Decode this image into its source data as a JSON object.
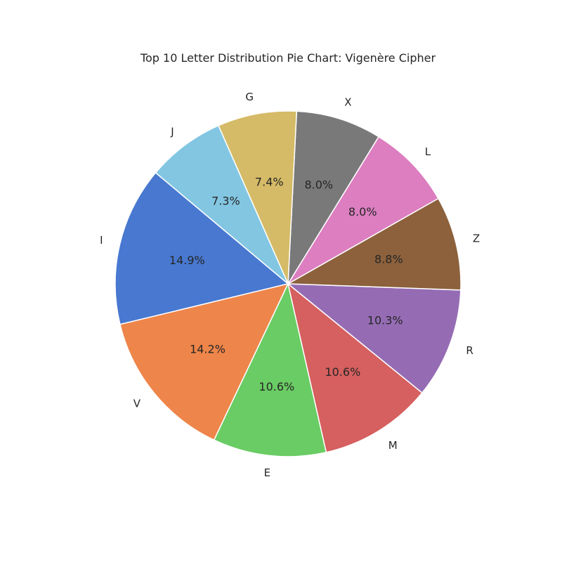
{
  "chart_data": {
    "type": "pie",
    "title": "Top 10 Letter Distribution Pie Chart: Vigenère Cipher",
    "start_angle_deg": 140,
    "direction": "counterclockwise",
    "slices": [
      {
        "label": "I",
        "value": 14.9,
        "pct_label": "14.9%",
        "color": "#4878d0"
      },
      {
        "label": "V",
        "value": 14.2,
        "pct_label": "14.2%",
        "color": "#ee854a"
      },
      {
        "label": "E",
        "value": 10.6,
        "pct_label": "10.6%",
        "color": "#6acc64"
      },
      {
        "label": "M",
        "value": 10.6,
        "pct_label": "10.6%",
        "color": "#d65f5f"
      },
      {
        "label": "R",
        "value": 10.3,
        "pct_label": "10.3%",
        "color": "#956cb4"
      },
      {
        "label": "Z",
        "value": 8.8,
        "pct_label": "8.8%",
        "color": "#8c613c"
      },
      {
        "label": "L",
        "value": 8.0,
        "pct_label": "8.0%",
        "color": "#dc7ec0"
      },
      {
        "label": "X",
        "value": 8.0,
        "pct_label": "8.0%",
        "color": "#797979"
      },
      {
        "label": "G",
        "value": 7.4,
        "pct_label": "7.4%",
        "color": "#d5bb67"
      },
      {
        "label": "J",
        "value": 7.3,
        "pct_label": "7.3%",
        "color": "#82c6e2"
      }
    ]
  }
}
